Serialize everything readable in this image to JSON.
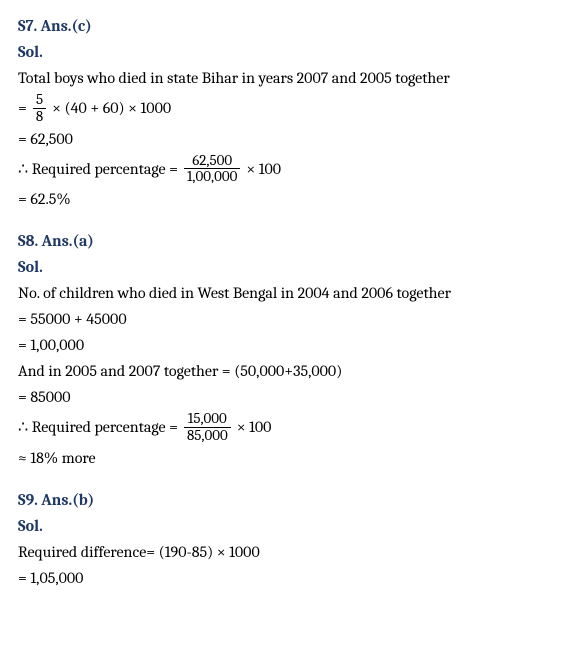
{
  "colors": {
    "heading": "#1f3864",
    "text": "#000000",
    "background": "#ffffff"
  },
  "typography": {
    "font_family": "Cambria, Georgia, serif",
    "body_fontsize": 16,
    "heading_weight": "bold"
  },
  "s7": {
    "heading": "S7. Ans.(c)",
    "sol_label": "Sol.",
    "line1": "Total boys who died in state Bihar in years 2007 and 2005 together",
    "eq1_prefix": "=",
    "eq1_frac_num": "5",
    "eq1_frac_den": "8",
    "eq1_trail": "× (40 + 60) × 1000",
    "eq2": "= 62,500",
    "req_prefix": "∴  Required percentage  =",
    "req_frac_num": "62,500",
    "req_frac_den": "1,00,000",
    "req_trail": "× 100",
    "eq3": "= 62.5%"
  },
  "s8": {
    "heading": "S8. Ans.(a)",
    "sol_label": "Sol.",
    "line1": "No. of children who died in West Bengal in 2004 and 2006 together",
    "eq1": "= 55000 + 45000",
    "eq2": "= 1,00,000",
    "line2": "And in 2005 and 2007 together = (50,000+35,000)",
    "eq3": "= 85000",
    "req_prefix": "∴  Required percentage  =",
    "req_frac_num": "15,000",
    "req_frac_den": "85,000",
    "req_trail": "× 100",
    "eq4": "≈ 18% more"
  },
  "s9": {
    "heading": "S9. Ans.(b)",
    "sol_label": "Sol.",
    "line1": "Required difference= (190-85) × 1000",
    "eq1": "= 1,05,000"
  }
}
